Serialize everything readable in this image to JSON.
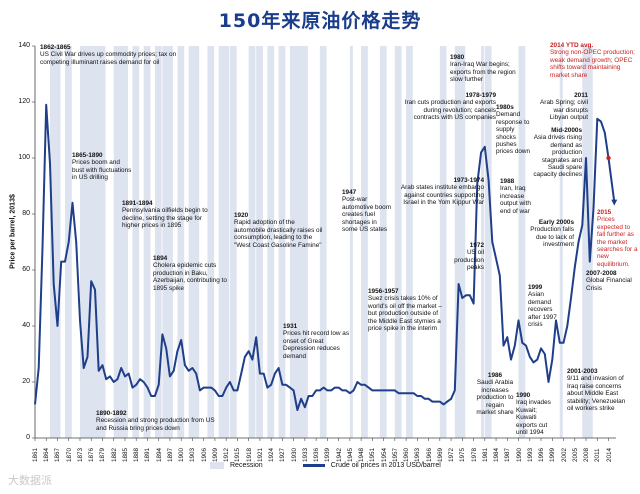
{
  "title": "150年来原油价格走势",
  "watermark": "大数据派",
  "chart_data": {
    "type": "line",
    "ylabel": "Price per barrel, 2013$",
    "ylim": [
      0,
      140
    ],
    "yticks": [
      0,
      20,
      40,
      60,
      80,
      100,
      120,
      140
    ],
    "xlim": [
      1861,
      2016
    ],
    "xticks": [
      1861,
      1864,
      1867,
      1870,
      1873,
      1876,
      1879,
      1882,
      1885,
      1888,
      1891,
      1894,
      1897,
      1900,
      1903,
      1906,
      1909,
      1912,
      1915,
      1918,
      1921,
      1924,
      1927,
      1930,
      1933,
      1936,
      1939,
      1942,
      1945,
      1948,
      1951,
      1954,
      1957,
      1960,
      1963,
      1966,
      1969,
      1972,
      1975,
      1978,
      1981,
      1984,
      1987,
      1990,
      1993,
      1996,
      1999,
      2002,
      2005,
      2008,
      2011,
      2014
    ],
    "series": [
      {
        "name": "Crude oil prices in 2013 USD/barrel",
        "x": [
          1861,
          1862,
          1863,
          1864,
          1865,
          1866,
          1867,
          1868,
          1869,
          1870,
          1871,
          1872,
          1873,
          1874,
          1875,
          1876,
          1877,
          1878,
          1879,
          1880,
          1881,
          1882,
          1883,
          1884,
          1885,
          1886,
          1887,
          1888,
          1889,
          1890,
          1891,
          1892,
          1893,
          1894,
          1895,
          1896,
          1897,
          1898,
          1899,
          1900,
          1901,
          1902,
          1903,
          1904,
          1905,
          1906,
          1907,
          1908,
          1909,
          1910,
          1911,
          1912,
          1913,
          1914,
          1915,
          1916,
          1917,
          1918,
          1919,
          1920,
          1921,
          1922,
          1923,
          1924,
          1925,
          1926,
          1927,
          1928,
          1929,
          1930,
          1931,
          1932,
          1933,
          1934,
          1935,
          1936,
          1937,
          1938,
          1939,
          1940,
          1941,
          1942,
          1943,
          1944,
          1945,
          1946,
          1947,
          1948,
          1949,
          1950,
          1951,
          1952,
          1953,
          1954,
          1955,
          1956,
          1957,
          1958,
          1959,
          1960,
          1961,
          1962,
          1963,
          1964,
          1965,
          1966,
          1967,
          1968,
          1969,
          1970,
          1971,
          1972,
          1973,
          1974,
          1975,
          1976,
          1977,
          1978,
          1979,
          1980,
          1981,
          1982,
          1983,
          1984,
          1985,
          1986,
          1987,
          1988,
          1989,
          1990,
          1991,
          1992,
          1993,
          1994,
          1995,
          1996,
          1997,
          1998,
          1999,
          2000,
          2001,
          2002,
          2003,
          2004,
          2005,
          2006,
          2007,
          2008,
          2009,
          2010,
          2011,
          2012,
          2013,
          2014,
          2015
        ],
        "values": [
          12,
          25,
          68,
          119,
          98,
          55,
          40,
          63,
          63,
          70,
          84,
          70,
          42,
          25,
          29,
          56,
          53,
          24,
          26,
          21,
          22,
          20,
          21,
          25,
          22,
          23,
          18,
          19,
          21,
          20,
          18,
          15,
          15,
          19,
          37,
          32,
          22,
          24,
          31,
          35,
          26,
          24,
          25,
          23,
          17,
          18,
          18,
          18,
          17,
          15,
          15,
          18,
          20,
          17,
          17,
          23,
          29,
          31,
          28,
          36,
          23,
          23,
          18,
          19,
          23,
          25,
          19,
          19,
          18,
          17,
          10,
          14,
          11,
          15,
          15,
          17,
          17,
          18,
          17,
          17,
          18,
          18,
          17,
          17,
          16,
          17,
          20,
          19,
          19,
          18,
          17,
          17,
          17,
          17,
          17,
          17,
          17,
          16,
          16,
          16,
          16,
          16,
          15,
          15,
          14,
          14,
          13,
          13,
          13,
          12,
          13,
          14,
          17,
          55,
          50,
          51,
          51,
          48,
          91,
          102,
          104,
          92,
          70,
          64,
          58,
          33,
          36,
          28,
          33,
          42,
          34,
          33,
          29,
          27,
          28,
          32,
          30,
          20,
          28,
          42,
          34,
          34,
          40,
          50,
          61,
          70,
          76,
          100,
          63,
          82,
          114,
          113,
          109,
          100,
          88
        ]
      }
    ],
    "recessions": [
      [
        1865,
        1867
      ],
      [
        1869,
        1870
      ],
      [
        1873,
        1879
      ],
      [
        1882,
        1885
      ],
      [
        1887,
        1888
      ],
      [
        1890,
        1891
      ],
      [
        1893,
        1894
      ],
      [
        1895,
        1897
      ],
      [
        1899,
        1900
      ],
      [
        1902,
        1904
      ],
      [
        1907,
        1908
      ],
      [
        1910,
        1912
      ],
      [
        1913,
        1914
      ],
      [
        1918,
        1919
      ],
      [
        1920,
        1921
      ],
      [
        1923,
        1924
      ],
      [
        1926,
        1927
      ],
      [
        1929,
        1933
      ],
      [
        1937,
        1938
      ],
      [
        1945,
        1945
      ],
      [
        1948,
        1949
      ],
      [
        1953,
        1954
      ],
      [
        1957,
        1958
      ],
      [
        1960,
        1961
      ],
      [
        1969,
        1970
      ],
      [
        1973,
        1975
      ],
      [
        1980,
        1980
      ],
      [
        1981,
        1982
      ],
      [
        1990,
        1991
      ],
      [
        2001,
        2001
      ],
      [
        2007,
        2009
      ]
    ],
    "recession_label": "Recession",
    "highlight_point": {
      "x": 2014,
      "y": 100
    },
    "annotations": [
      {
        "id": "a1862",
        "head": "1862-1865",
        "text": "US Civil War drives up commodity prices; tax on competing illuminant raises demand for oil"
      },
      {
        "id": "a1865",
        "head": "1865-1890",
        "text": "Prices boom and bust with fluctuations in US drilling"
      },
      {
        "id": "a1891",
        "head": "1891-1894",
        "text": "Pennsylvania oilfields begin to decline, setting the stage for higher prices in 1895"
      },
      {
        "id": "a1894",
        "head": "1894",
        "text": "Cholera epidemic cuts production in Baku, Azerbaijan, contributing to 1895 spike"
      },
      {
        "id": "a1890",
        "head": "1890-1892",
        "text": "Recession and strong production from US and Russia bring prices down"
      },
      {
        "id": "a1920",
        "head": "1920",
        "text": "Rapid adoption of the automobile drastically raises oil consumption, leading to the \"West Coast Gasoline Famine\""
      },
      {
        "id": "a1931",
        "head": "1931",
        "text": "Prices hit record low as onset of Great Depression reduces demand"
      },
      {
        "id": "a1947",
        "head": "1947",
        "text": "Post-war automotive boom creates fuel shortages in some US states"
      },
      {
        "id": "a1956",
        "head": "1956-1957",
        "text": "Suez crisis takes 10% of world's oil off the market – but production outside of the Middle East stymies a price spike in the interim"
      },
      {
        "id": "a1973",
        "head": "1973-1974",
        "text": "Arab states institute embargo against countries supporting Israel in the Yom Kippur War"
      },
      {
        "id": "a1972",
        "head": "1972",
        "text": "US oil production peaks"
      },
      {
        "id": "a1978",
        "head": "1978-1979",
        "text": "Iran cuts production and exports during revolution; cancels contracts with US companies"
      },
      {
        "id": "a1980",
        "head": "1980",
        "text": "Iran-Iraq War begins; exports from the region slow further"
      },
      {
        "id": "a1980s",
        "head": "1980s",
        "text": "Demand response to supply shocks pushes prices down"
      },
      {
        "id": "a1988",
        "head": "1988",
        "text": "Iran, Iraq increase output with end of war"
      },
      {
        "id": "a1986",
        "head": "1986",
        "text": "Saudi Arabia increases production to regain market share"
      },
      {
        "id": "a1990",
        "head": "1990",
        "text": "Iraq invades Kuwait; Kuwaiti exports cut until 1994"
      },
      {
        "id": "a1999",
        "head": "1999",
        "text": "Asian demand recovers after 1997 crisis"
      },
      {
        "id": "a2000s",
        "head": "Mid-2000s",
        "text": "Asia drives rising demand as production stagnates and Saudi spare capacity declines"
      },
      {
        "id": "a2000e",
        "head": "Early 2000s",
        "text": "Production falls due to lack of investment"
      },
      {
        "id": "a2001",
        "head": "2001-2003",
        "text": "9/11 and invasion of Iraq raise concerns about Middle East stability; Venezuelan oil workers strike"
      },
      {
        "id": "a2007",
        "head": "2007-2008",
        "text": "Global Financial Crisis"
      },
      {
        "id": "a2011",
        "head": "2011",
        "text": "Arab Spring; civil war disrupts Libyan output"
      },
      {
        "id": "a2014",
        "head": "2014 YTD avg.",
        "text": "Strong non-OPEC production; weak demand growth; OPEC shifts toward maintaining market share"
      },
      {
        "id": "a2015",
        "head": "2015",
        "text": "Prices expected to fall further as the market searches for a new equilibrium."
      }
    ]
  },
  "colors": {
    "line": "#1f3f8a",
    "recession": "#dde3ef",
    "title": "#1a3c8c",
    "highlight": "#cc1f1f"
  }
}
